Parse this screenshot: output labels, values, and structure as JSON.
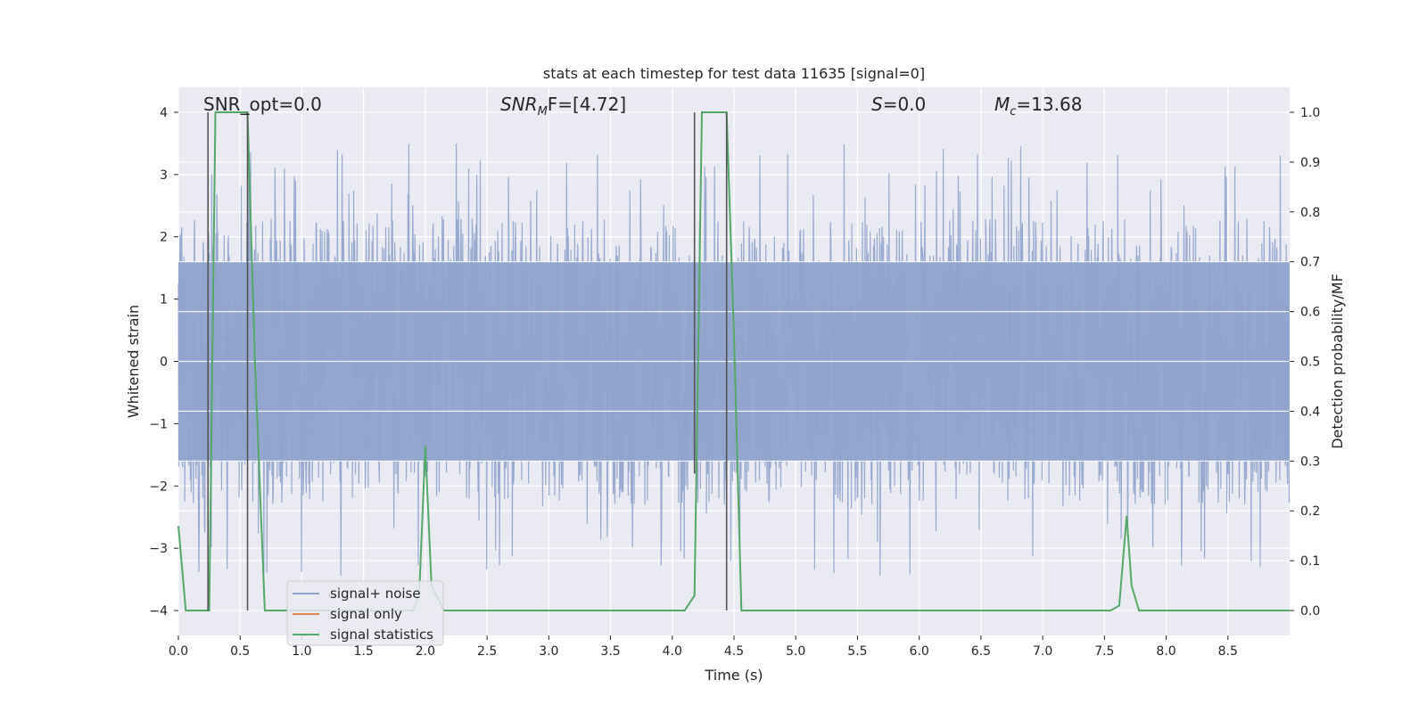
{
  "chart_data": {
    "type": "line",
    "title": "stats at each timestep for test data 11635 [signal=0]",
    "xlabel": "Time (s)",
    "ylabel_left": "Whitened strain",
    "ylabel_right": "Detection probability/MF",
    "xlim": [
      0,
      9
    ],
    "ylim_left": [
      -4.4,
      4.4
    ],
    "ylim_right": [
      -0.05,
      1.05
    ],
    "x_ticks": [
      "0.0",
      "0.5",
      "1.0",
      "1.5",
      "2.0",
      "2.5",
      "3.0",
      "3.5",
      "4.0",
      "4.5",
      "5.0",
      "5.5",
      "6.0",
      "6.5",
      "7.0",
      "7.5",
      "8.0",
      "8.5"
    ],
    "x_tick_values": [
      0,
      0.5,
      1,
      1.5,
      2,
      2.5,
      3,
      3.5,
      4,
      4.5,
      5,
      5.5,
      6,
      6.5,
      7,
      7.5,
      8,
      8.5
    ],
    "y_left_ticks": [
      "−4",
      "−3",
      "−2",
      "−1",
      "0",
      "1",
      "2",
      "3",
      "4"
    ],
    "y_left_tick_values": [
      -4,
      -3,
      -2,
      -1,
      0,
      1,
      2,
      3,
      4
    ],
    "y_right_ticks": [
      "0.0",
      "0.1",
      "0.2",
      "0.3",
      "0.4",
      "0.5",
      "0.6",
      "0.7",
      "0.8",
      "0.9",
      "1.0"
    ],
    "y_right_tick_values": [
      0,
      0.1,
      0.2,
      0.3,
      0.4,
      0.5,
      0.6,
      0.7,
      0.8,
      0.9,
      1.0
    ],
    "grid": true,
    "legend_position": "lower-left",
    "legend": [
      {
        "label": "signal+ noise",
        "color": "#8fa3cc"
      },
      {
        "label": "signal only",
        "color": "#dd8452"
      },
      {
        "label": "signal statistics",
        "color": "#55a868"
      }
    ],
    "annotations": {
      "snr_opt": "SNR_opt=0.0",
      "snr_mf_main": "SNR",
      "snr_mf_sub": "M",
      "snr_mf_rest": "F=[4.72]",
      "s_main": "S",
      "s_rest": "=0.0",
      "mc_main": "M",
      "mc_sub": "c",
      "mc_rest": "=13.68"
    },
    "noise_series": {
      "name": "signal+ noise",
      "color": "#8fa3cc",
      "band_sigma": 1.6,
      "approx_range": [
        -3.6,
        4.0
      ],
      "x_range": [
        0,
        9
      ]
    },
    "statistics_series": {
      "name": "signal statistics",
      "color": "#55a868",
      "axis": "right",
      "x": [
        0.0,
        0.06,
        0.12,
        0.18,
        0.25,
        0.3,
        0.5,
        0.56,
        0.62,
        0.7,
        0.75,
        1.8,
        1.9,
        1.95,
        2.0,
        2.05,
        2.15,
        4.1,
        4.18,
        4.24,
        4.44,
        4.5,
        4.56,
        4.65,
        7.55,
        7.62,
        7.68,
        7.72,
        7.78,
        9.0
      ],
      "y": [
        0.17,
        0.0,
        0.0,
        0.0,
        0.0,
        1.0,
        1.0,
        1.0,
        0.5,
        0.0,
        0.0,
        0.0,
        0.0,
        0.03,
        0.33,
        0.05,
        0.0,
        0.0,
        0.03,
        1.0,
        1.0,
        0.55,
        0.0,
        0.0,
        0.0,
        0.01,
        0.19,
        0.05,
        0.0,
        0.0
      ]
    },
    "vertical_markers": {
      "color": "#555555",
      "x": [
        0.24,
        0.56,
        4.18,
        4.44
      ],
      "y_top": [
        4.0,
        4.0,
        4.0,
        4.0
      ],
      "y_bottom": [
        -4.0,
        -4.0,
        -1.8,
        -4.0
      ]
    }
  }
}
